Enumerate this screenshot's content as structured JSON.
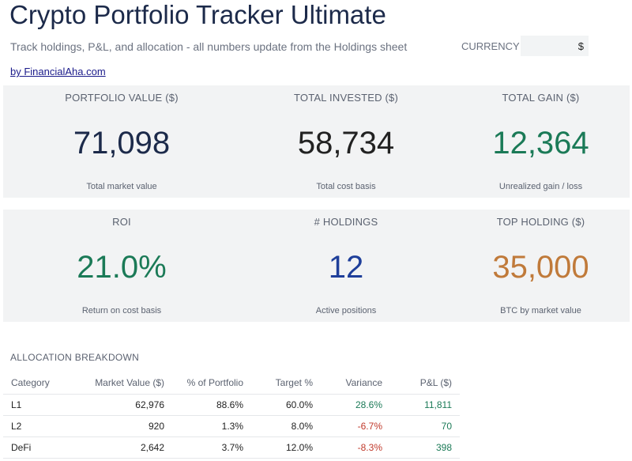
{
  "header": {
    "title": "Crypto Portfolio Tracker Ultimate",
    "subtitle": "Track holdings, P&L, and allocation - all numbers update from the Holdings sheet",
    "currency_label": "CURRENCY",
    "currency_value": "$",
    "byline": "by FinancialAha.com"
  },
  "kpis_row1": [
    {
      "label": "PORTFOLIO VALUE ($)",
      "value": "71,098",
      "sub": "Total market value",
      "color": "#1c2a4a"
    },
    {
      "label": "TOTAL INVESTED ($)",
      "value": "58,734",
      "sub": "Total cost basis",
      "color": "#222222"
    },
    {
      "label": "TOTAL GAIN ($)",
      "value": "12,364",
      "sub": "Unrealized gain / loss",
      "color": "#1b7a57"
    }
  ],
  "kpis_row2": [
    {
      "label": "ROI",
      "value": "21.0%",
      "sub": "Return on cost basis",
      "color": "#1b7a57"
    },
    {
      "label": "# HOLDINGS",
      "value": "12",
      "sub": "Active positions",
      "color": "#1f3f9a"
    },
    {
      "label": "TOP HOLDING ($)",
      "value": "35,000",
      "sub": "BTC by market value",
      "color": "#c07a3a"
    }
  ],
  "allocation": {
    "title": "ALLOCATION BREAKDOWN",
    "columns": [
      "Category",
      "Market Value ($)",
      "% of Portfolio",
      "Target %",
      "Variance",
      "P&L ($)"
    ],
    "rows": [
      {
        "category": "L1",
        "market_value": "62,976",
        "pct": "88.6%",
        "target": "60.0%",
        "variance": "28.6%",
        "pl": "11,811"
      },
      {
        "category": "L2",
        "market_value": "920",
        "pct": "1.3%",
        "target": "8.0%",
        "variance": "-6.7%",
        "pl": "70"
      },
      {
        "category": "DeFi",
        "market_value": "2,642",
        "pct": "3.7%",
        "target": "12.0%",
        "variance": "-8.3%",
        "pl": "398"
      }
    ]
  }
}
